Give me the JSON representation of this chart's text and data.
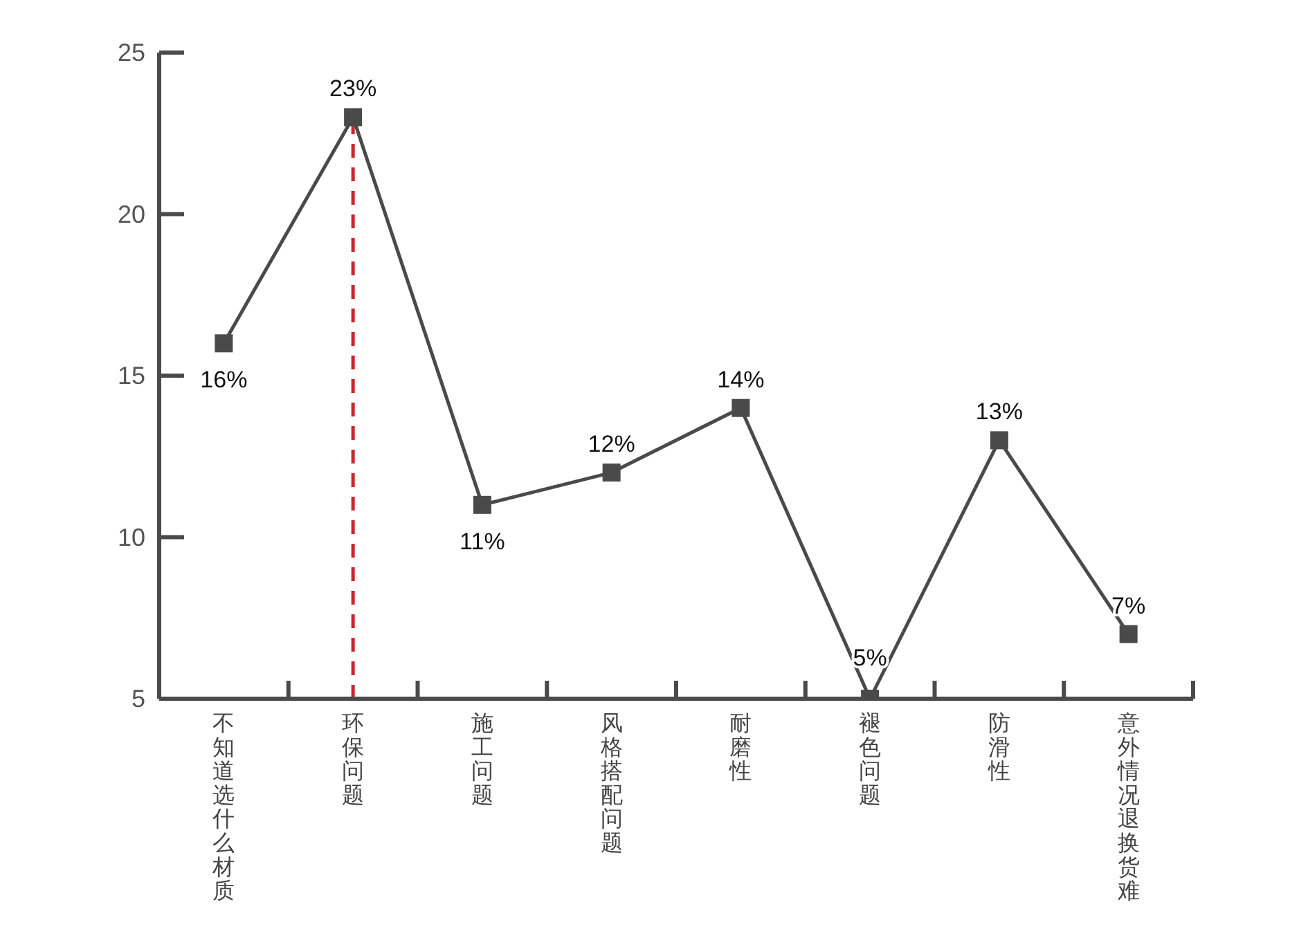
{
  "chart_data": {
    "type": "line",
    "categories": [
      "不知道选什么材质",
      "环保问题",
      "施工问题",
      "风格搭配问题",
      "耐磨性",
      "褪色问题",
      "防滑性",
      "意外情况退换货难"
    ],
    "values": [
      16,
      23,
      11,
      12,
      14,
      5,
      13,
      7
    ],
    "color": "#4a4a4a",
    "value_labels": [
      "16%",
      "23%",
      "11%",
      "12%",
      "14%",
      "5%",
      "13%",
      "7%"
    ],
    "ylim": [
      5,
      25
    ],
    "yticks": [
      5,
      10,
      15,
      20,
      25
    ],
    "marker": "square",
    "line_style": "solid",
    "ref_lines": [
      {
        "axis": "x",
        "value": "环保问题",
        "color": "#c9252c",
        "line_style": "dashed"
      }
    ]
  }
}
